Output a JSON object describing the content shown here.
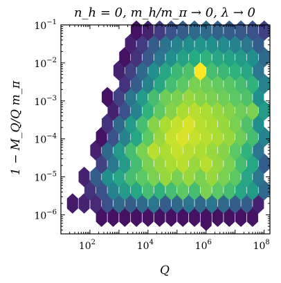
{
  "chart_data": {
    "type": "heatmap",
    "subtype": "hexbin",
    "title": "n_h = 0,  m_h/m_π → 0,  λ → 0",
    "xlabel": "Q",
    "ylabel": "1 − M_Q/Q m_π",
    "x_scale": "log",
    "y_scale": "log",
    "xlim": [
      10.0,
      158000000.0
    ],
    "ylim": [
      3.16e-07,
      0.1
    ],
    "grid": false,
    "legend": "none",
    "colormap": "viridis",
    "x_ticks": [
      {
        "exp": "2",
        "value": 100
      },
      {
        "exp": "4",
        "value": 10000
      },
      {
        "exp": "6",
        "value": 1000000
      },
      {
        "exp": "8",
        "value": 100000000
      }
    ],
    "y_ticks": [
      {
        "exp": "-1",
        "value": 0.1
      },
      {
        "exp": "-2",
        "value": 0.01
      },
      {
        "exp": "-3",
        "value": 0.001
      },
      {
        "exp": "-4",
        "value": 0.0001
      },
      {
        "exp": "-5",
        "value": 1e-05
      },
      {
        "exp": "-6",
        "value": 1e-06
      }
    ],
    "grid_spec": {
      "x_log_start": 1.0,
      "x_log_step": 0.4,
      "cols": 18,
      "y_log_start": -6.4,
      "y_log_step": 0.35,
      "rows": 17
    },
    "cells_note": "rows listed from bottom (row 0) to top; values are relative density 0-1 per hex column, null = empty",
    "rows": [
      [
        null,
        null,
        null,
        null,
        null,
        null,
        null,
        null,
        null,
        null,
        null,
        null,
        null,
        null,
        null,
        null,
        null,
        null
      ],
      [
        null,
        null,
        null,
        0.05,
        0.05,
        0.05,
        0.05,
        0.05,
        0.05,
        0.05,
        0.05,
        0.05,
        0.05,
        0.05,
        0.05,
        0.05,
        0.05,
        null
      ],
      [
        null,
        0.08,
        0.1,
        0.12,
        0.25,
        0.35,
        0.3,
        0.35,
        0.4,
        0.3,
        0.35,
        0.4,
        0.35,
        0.4,
        0.35,
        0.3,
        0.3,
        0.1
      ],
      [
        null,
        null,
        0.15,
        0.25,
        0.45,
        0.55,
        0.6,
        0.7,
        0.65,
        0.7,
        0.75,
        0.7,
        0.8,
        0.75,
        0.7,
        0.6,
        0.55,
        0.35
      ],
      [
        null,
        null,
        0.1,
        0.3,
        0.5,
        0.6,
        0.7,
        0.75,
        0.8,
        0.85,
        0.8,
        0.85,
        0.8,
        0.85,
        0.8,
        0.75,
        0.6,
        0.4
      ],
      [
        null,
        null,
        null,
        0.2,
        0.4,
        0.55,
        0.7,
        0.8,
        0.85,
        0.88,
        0.9,
        0.85,
        0.9,
        0.85,
        0.8,
        0.7,
        0.6,
        0.3
      ],
      [
        null,
        null,
        null,
        0.1,
        0.35,
        0.55,
        0.7,
        0.8,
        0.9,
        0.88,
        0.92,
        0.9,
        0.88,
        0.85,
        0.82,
        0.75,
        0.65,
        0.4
      ],
      [
        null,
        null,
        null,
        0.05,
        0.25,
        0.45,
        0.6,
        0.75,
        0.85,
        0.92,
        0.95,
        0.92,
        0.9,
        0.88,
        0.85,
        0.78,
        0.7,
        0.45
      ],
      [
        null,
        null,
        null,
        null,
        0.15,
        0.35,
        0.55,
        0.7,
        0.82,
        0.88,
        0.92,
        0.95,
        0.9,
        0.88,
        0.85,
        0.8,
        0.72,
        0.5
      ],
      [
        null,
        null,
        null,
        null,
        0.1,
        0.25,
        0.45,
        0.65,
        0.75,
        0.82,
        0.88,
        0.9,
        0.88,
        0.85,
        0.82,
        0.78,
        0.8,
        0.55
      ],
      [
        null,
        null,
        null,
        null,
        0.05,
        0.2,
        0.4,
        0.55,
        0.7,
        0.78,
        0.8,
        0.85,
        0.82,
        0.8,
        0.78,
        0.75,
        0.72,
        0.5
      ],
      [
        null,
        null,
        null,
        null,
        null,
        0.15,
        0.3,
        0.45,
        0.6,
        0.7,
        0.75,
        0.8,
        0.78,
        0.76,
        0.74,
        0.7,
        0.65,
        0.45
      ],
      [
        null,
        null,
        null,
        null,
        null,
        0.1,
        0.2,
        0.35,
        0.5,
        0.6,
        0.68,
        0.72,
        1.0,
        0.7,
        0.68,
        0.65,
        0.6,
        0.4
      ],
      [
        null,
        null,
        null,
        null,
        null,
        0.05,
        0.15,
        0.28,
        0.4,
        0.5,
        0.58,
        0.62,
        0.65,
        0.6,
        0.58,
        0.55,
        0.5,
        0.35
      ],
      [
        null,
        null,
        null,
        null,
        null,
        null,
        0.1,
        0.18,
        0.3,
        0.38,
        0.45,
        0.5,
        0.52,
        0.5,
        0.48,
        0.45,
        0.4,
        0.3
      ],
      [
        null,
        null,
        null,
        null,
        null,
        null,
        0.05,
        0.1,
        0.18,
        0.25,
        0.3,
        0.35,
        0.35,
        0.32,
        0.3,
        0.28,
        0.25,
        0.2
      ],
      [
        null,
        null,
        null,
        null,
        null,
        null,
        null,
        0.05,
        0.08,
        0.1,
        0.12,
        0.15,
        0.12,
        0.1,
        0.1,
        0.1,
        0.1,
        0.1
      ]
    ],
    "extra_cells": [
      {
        "x": 1000000,
        "y": 7e-07,
        "value": 0.05
      }
    ]
  }
}
